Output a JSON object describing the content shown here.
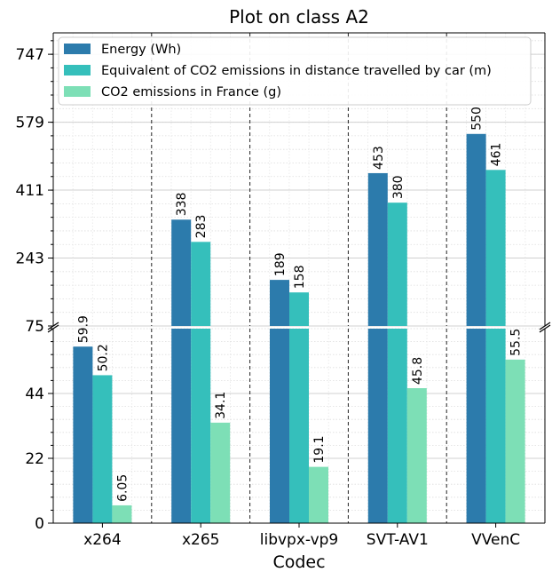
{
  "chart_data": {
    "type": "bar",
    "title": "Plot on class A2",
    "xlabel": "Codec",
    "ylabel": "",
    "categories": [
      "x264",
      "x265",
      "libvpx-vp9",
      "SVT-AV1",
      "VVenC"
    ],
    "series": [
      {
        "name": "Energy (Wh)",
        "color": "#2c7bac",
        "values": [
          59.9,
          338,
          189,
          453,
          550
        ],
        "labels": [
          "59.9",
          "338",
          "189",
          "453",
          "550"
        ]
      },
      {
        "name": "Equivalent of CO2 emissions in distance travelled by car (m)",
        "color": "#35bfbb",
        "values": [
          50.2,
          283,
          158,
          380,
          461
        ],
        "labels": [
          "50.2",
          "283",
          "158",
          "380",
          "461"
        ]
      },
      {
        "name": "CO2 emissions in France (g)",
        "color": "#7ddfb6",
        "values": [
          6.05,
          34.1,
          19.1,
          45.8,
          55.5
        ],
        "labels": [
          "6.05",
          "34.1",
          "19.1",
          "45.8",
          "55.5"
        ]
      }
    ],
    "broken_axis": true,
    "lower_ylim": [
      0,
      66
    ],
    "upper_ylim": [
      75,
      800
    ],
    "lower_ticks": [
      "0",
      "22",
      "44"
    ],
    "upper_ticks": [
      "75",
      "243",
      "411",
      "579",
      "747"
    ],
    "grid": true,
    "legend_position": "top-left"
  }
}
